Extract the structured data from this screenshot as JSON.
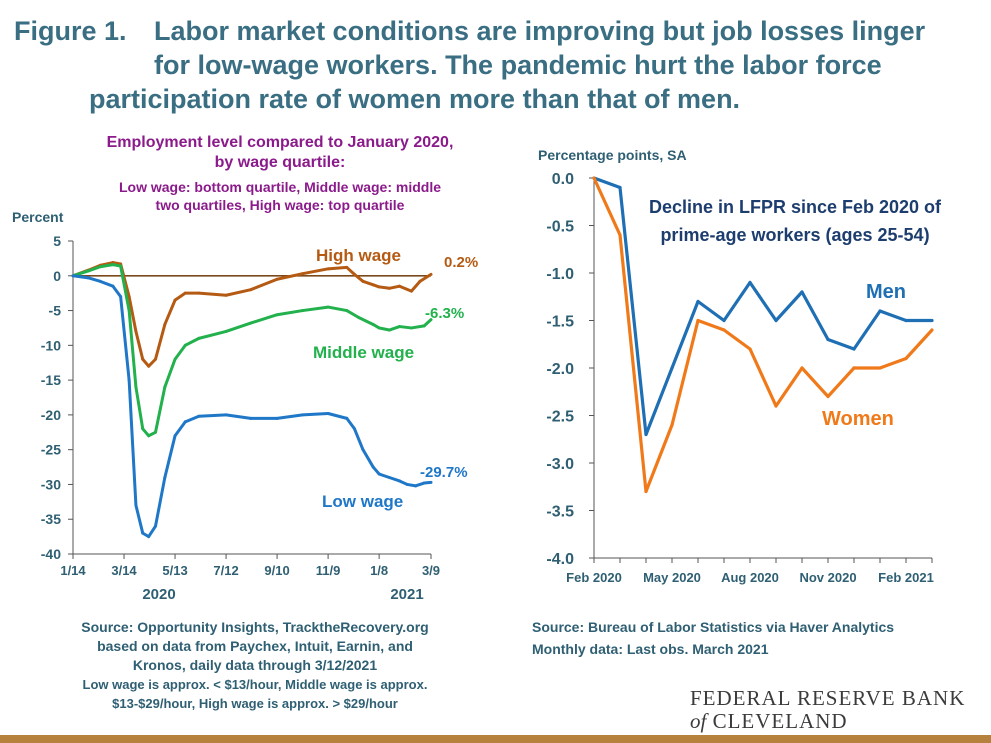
{
  "figure": {
    "number": "Figure 1.",
    "title_line1": "Labor market conditions are improving but job losses linger",
    "title_line2": "for low-wage workers.  The pandemic hurt the labor force",
    "title_line3": "participation rate of women more than that of men."
  },
  "colors": {
    "title": "#3a6e82",
    "purple": "#8b1a8b",
    "high_wage": "#b55a12",
    "middle_wage": "#22b14c",
    "low_wage": "#1f77c8",
    "men": "#1f6fb4",
    "women": "#f07a1a",
    "source_text": "#2f5f73",
    "footer": "#b5813c"
  },
  "left_notes": {
    "heading1": "Employment level compared to January 2020,",
    "heading2": "by wage quartile:",
    "sub1": "Low wage: bottom quartile, Middle wage: middle",
    "sub2": "two quartiles, High wage: top quartile"
  },
  "left_source": {
    "line1": "Source: Opportunity Insights, TracktheRecovery.org",
    "line2": "based on data from Paychex, Intuit, Earnin, and",
    "line3": "Kronos, daily data through 3/12/2021",
    "line4": "Low wage is approx. < $13/hour, Middle wage is approx.",
    "line5": "$13-$29/hour, High wage is approx. > $29/hour"
  },
  "right_source": {
    "line1": "Source: Bureau of Labor Statistics via Haver Analytics",
    "line2": "Monthly data: Last obs. March 2021"
  },
  "logo": {
    "line1": "FEDERAL RESERVE BANK",
    "line2_of": "of",
    "line2_name": "CLEVELAND"
  },
  "chart_data": [
    {
      "type": "line",
      "title": "Employment level compared to January 2020, by wage quartile",
      "ylabel": "Percent",
      "ylim": [
        -40,
        5
      ],
      "yticks": [
        5,
        0,
        -5,
        -10,
        -15,
        -20,
        -25,
        -30,
        -35,
        -40
      ],
      "xticks": [
        "1/14",
        "3/14",
        "5/13",
        "7/12",
        "9/10",
        "11/9",
        "1/8",
        "3/9"
      ],
      "year_labels": [
        "2020",
        "2021"
      ],
      "end_labels": [
        "0.2%",
        "-6.3%",
        "-29.7%"
      ],
      "series": [
        {
          "name": "High wage",
          "end_label": "0.2%",
          "x": [
            "1/14",
            "2/1",
            "2/15",
            "3/1",
            "3/10",
            "3/20",
            "3/28",
            "4/5",
            "4/12",
            "4/20",
            "5/1",
            "5/13",
            "5/25",
            "6/10",
            "7/12",
            "8/10",
            "9/10",
            "10/10",
            "11/9",
            "12/1",
            "12/10",
            "12/20",
            "1/1",
            "1/8",
            "1/20",
            "2/1",
            "2/15",
            "2/25",
            "3/9"
          ],
          "values": [
            0,
            0.8,
            1.5,
            1.9,
            1.7,
            -3,
            -8,
            -12,
            -13,
            -12,
            -7,
            -3.5,
            -2.5,
            -2.5,
            -2.8,
            -2,
            -0.5,
            0.3,
            1,
            1.2,
            0.2,
            -0.8,
            -1.3,
            -1.6,
            -1.8,
            -1.5,
            -2.2,
            -0.8,
            0.2
          ]
        },
        {
          "name": "Middle wage",
          "end_label": "-6.3%",
          "x": [
            "1/14",
            "2/1",
            "2/15",
            "3/1",
            "3/10",
            "3/20",
            "3/28",
            "4/5",
            "4/12",
            "4/20",
            "5/1",
            "5/13",
            "5/25",
            "6/10",
            "7/12",
            "8/10",
            "9/10",
            "10/10",
            "11/9",
            "12/1",
            "12/15",
            "1/1",
            "1/8",
            "1/20",
            "2/1",
            "2/15",
            "3/1",
            "3/9"
          ],
          "values": [
            0,
            0.7,
            1.3,
            1.6,
            1.4,
            -5,
            -16,
            -22,
            -23,
            -22.5,
            -16,
            -12,
            -10,
            -9,
            -8,
            -6.8,
            -5.6,
            -5,
            -4.5,
            -5,
            -6,
            -7,
            -7.5,
            -7.8,
            -7.3,
            -7.5,
            -7.2,
            -6.3
          ]
        },
        {
          "name": "Low wage",
          "end_label": "-29.7%",
          "x": [
            "1/14",
            "2/1",
            "2/15",
            "3/1",
            "3/10",
            "3/20",
            "3/28",
            "4/5",
            "4/12",
            "4/20",
            "5/1",
            "5/13",
            "5/25",
            "6/10",
            "7/12",
            "8/10",
            "9/10",
            "10/10",
            "11/9",
            "12/1",
            "12/10",
            "12/20",
            "1/1",
            "1/8",
            "1/20",
            "2/1",
            "2/10",
            "2/20",
            "3/1",
            "3/9"
          ],
          "values": [
            0,
            -0.3,
            -0.8,
            -1.5,
            -3,
            -15,
            -33,
            -37,
            -37.5,
            -36,
            -29,
            -23,
            -21,
            -20.2,
            -20,
            -20.5,
            -20.5,
            -20,
            -19.8,
            -20.5,
            -22,
            -25,
            -27.5,
            -28.5,
            -29,
            -29.5,
            -30,
            -30.2,
            -29.8,
            -29.7
          ]
        }
      ]
    },
    {
      "type": "line",
      "title": "Decline in LFPR since Feb 2020 of prime-age workers (ages 25-54)",
      "ylabel": "Percentage points, SA",
      "ylim": [
        -4.0,
        0.0
      ],
      "yticks": [
        "0.0",
        "-0.5",
        "-1.0",
        "-1.5",
        "-2.0",
        "-2.5",
        "-3.0",
        "-3.5",
        "-4.0"
      ],
      "xticks": [
        "Feb 2020",
        "May 2020",
        "Aug 2020",
        "Nov 2020",
        "Feb 2021"
      ],
      "x": [
        "Feb 2020",
        "Mar 2020",
        "Apr 2020",
        "May 2020",
        "Jun 2020",
        "Jul 2020",
        "Aug 2020",
        "Sep 2020",
        "Oct 2020",
        "Nov 2020",
        "Dec 2020",
        "Jan 2021",
        "Feb 2021",
        "Mar 2021"
      ],
      "series": [
        {
          "name": "Men",
          "values": [
            0.0,
            -0.1,
            -2.7,
            -2.0,
            -1.3,
            -1.5,
            -1.1,
            -1.5,
            -1.2,
            -1.7,
            -1.8,
            -1.4,
            -1.5,
            -1.5
          ]
        },
        {
          "name": "Women",
          "values": [
            0.0,
            -0.6,
            -3.3,
            -2.6,
            -1.5,
            -1.6,
            -1.8,
            -2.4,
            -2.0,
            -2.3,
            -2.0,
            -2.0,
            -1.9,
            -1.6
          ]
        }
      ]
    }
  ]
}
